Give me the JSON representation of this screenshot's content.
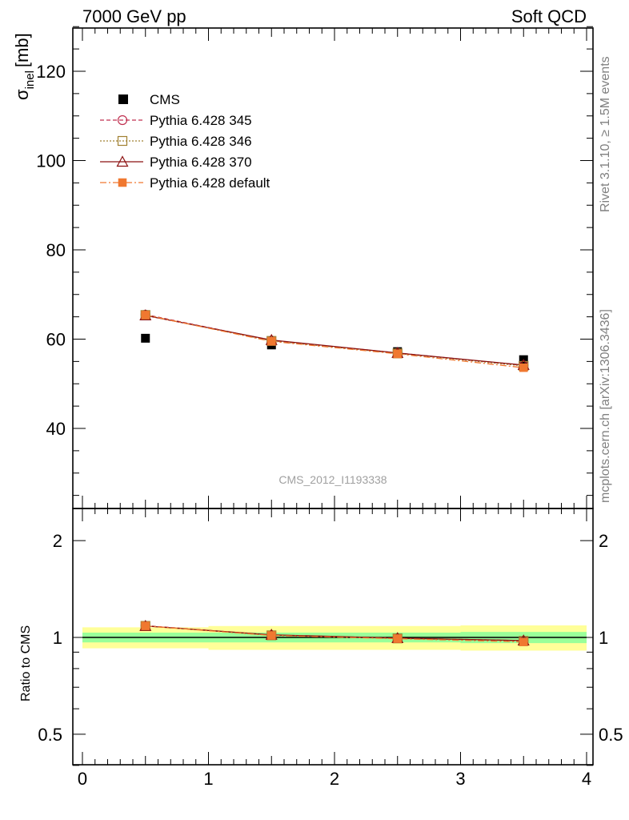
{
  "header": {
    "left": "7000 GeV pp",
    "right": "Soft QCD"
  },
  "side_text": {
    "rivet": "Rivet 3.1.10, ≥ 1.5M events",
    "mcplots": "mcplots.cern.ch [arXiv:1306.3436]"
  },
  "watermark": "CMS_2012_I1193338",
  "colors": {
    "cms": "#000000",
    "p345": "#c03050",
    "p346": "#a08030",
    "p370": "#8b1010",
    "pdef": "#f07830",
    "band_inner": "#99ff99",
    "band_outer": "#ffff99"
  },
  "chart_data": [
    {
      "type": "scatter",
      "panel": "main",
      "ylabel": "σ_inel [mb]",
      "ylabel_main": "σ",
      "ylabel_sub": "inel",
      "ylabel_unit": "[mb]",
      "xlim": [
        0,
        4
      ],
      "ylim": [
        23,
        130
      ],
      "yticks": [
        40,
        60,
        80,
        100,
        120
      ],
      "legend_position": "top-left",
      "x": [
        0.5,
        1.5,
        2.5,
        3.5
      ],
      "series": [
        {
          "name": "CMS",
          "values": [
            60.2,
            58.7,
            57.2,
            55.4
          ],
          "style": "data"
        },
        {
          "name": "Pythia 6.428 345",
          "values": [
            65.5,
            59.7,
            56.9,
            54.1
          ],
          "style": "p345"
        },
        {
          "name": "Pythia 6.428 346",
          "values": [
            65.4,
            59.6,
            56.8,
            54.0
          ],
          "style": "p346"
        },
        {
          "name": "Pythia 6.428 370",
          "values": [
            65.3,
            59.8,
            56.9,
            54.2
          ],
          "style": "p370"
        },
        {
          "name": "Pythia 6.428 default",
          "values": [
            65.4,
            59.5,
            56.7,
            53.6
          ],
          "style": "pdef"
        }
      ]
    },
    {
      "type": "line",
      "panel": "ratio",
      "ylabel": "Ratio to CMS",
      "xlim": [
        0,
        4
      ],
      "ylim": [
        0.4,
        2.3
      ],
      "yscale": "log",
      "yticks": [
        0.5,
        1,
        2
      ],
      "xticks": [
        0,
        1,
        2,
        3,
        4
      ],
      "x": [
        0.5,
        1.5,
        2.5,
        3.5
      ],
      "bins": [
        [
          0,
          1
        ],
        [
          1,
          2
        ],
        [
          2,
          3
        ],
        [
          3,
          4
        ]
      ],
      "band_inner": [
        [
          0.965,
          1.035
        ],
        [
          0.965,
          1.035
        ],
        [
          0.965,
          1.035
        ],
        [
          0.96,
          1.04
        ]
      ],
      "band_outer": [
        [
          0.925,
          1.075
        ],
        [
          0.915,
          1.085
        ],
        [
          0.915,
          1.085
        ],
        [
          0.91,
          1.09
        ]
      ],
      "series": [
        {
          "name": "Pythia 6.428 345",
          "values": [
            1.088,
            1.017,
            0.995,
            0.977
          ],
          "style": "p345"
        },
        {
          "name": "Pythia 6.428 346",
          "values": [
            1.086,
            1.015,
            0.993,
            0.975
          ],
          "style": "p346"
        },
        {
          "name": "Pythia 6.428 370",
          "values": [
            1.085,
            1.019,
            0.995,
            0.978
          ],
          "style": "p370"
        },
        {
          "name": "Pythia 6.428 default",
          "values": [
            1.086,
            1.014,
            0.991,
            0.968
          ],
          "style": "pdef"
        }
      ]
    }
  ]
}
